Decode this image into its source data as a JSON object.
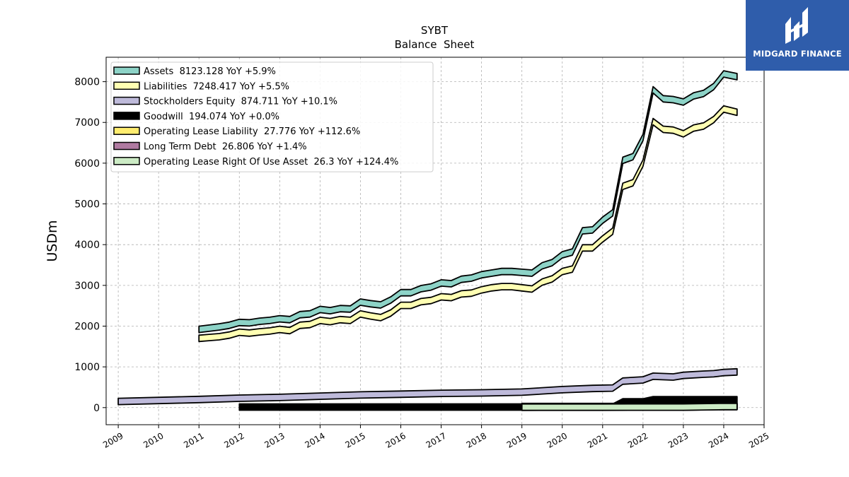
{
  "brand": {
    "name": "MIDGARD FINANCE",
    "color": "#2f5dab"
  },
  "chart_data": {
    "type": "area",
    "title": "SYBT",
    "subtitle": "Balance  Sheet",
    "ylabel": "USDm",
    "xlabel": "",
    "xlim": [
      2008.7,
      2025
    ],
    "ylim": [
      -420,
      8600
    ],
    "yticks": [
      0,
      1000,
      2000,
      3000,
      4000,
      5000,
      6000,
      7000,
      8000
    ],
    "xticks": [
      2009,
      2010,
      2011,
      2012,
      2013,
      2014,
      2015,
      2016,
      2017,
      2018,
      2019,
      2020,
      2021,
      2022,
      2023,
      2024,
      2025
    ],
    "grid": true,
    "legend_position": "top-left",
    "series": [
      {
        "name": "Assets",
        "legend": "Assets  8123.128 YoY +5.9%",
        "color": "#8dd3c7",
        "x": [
          2011.0,
          2011.25,
          2011.5,
          2011.75,
          2012.0,
          2012.25,
          2012.5,
          2012.75,
          2013.0,
          2013.25,
          2013.5,
          2013.75,
          2014.0,
          2014.25,
          2014.5,
          2014.75,
          2015.0,
          2015.25,
          2015.5,
          2015.75,
          2016.0,
          2016.25,
          2016.5,
          2016.75,
          2017.0,
          2017.25,
          2017.5,
          2017.75,
          2018.0,
          2018.25,
          2018.5,
          2018.75,
          2019.0,
          2019.25,
          2019.5,
          2019.75,
          2020.0,
          2020.25,
          2020.5,
          2020.75,
          2021.0,
          2021.25,
          2021.5,
          2021.75,
          2022.0,
          2022.25,
          2022.5,
          2022.75,
          2023.0,
          2023.25,
          2023.5,
          2023.75,
          2024.0,
          2024.33
        ],
        "y": [
          1920,
          1950,
          1980,
          2020,
          2090,
          2080,
          2120,
          2140,
          2180,
          2160,
          2280,
          2300,
          2410,
          2380,
          2430,
          2420,
          2590,
          2550,
          2520,
          2640,
          2820,
          2820,
          2920,
          2960,
          3060,
          3040,
          3150,
          3180,
          3260,
          3300,
          3340,
          3340,
          3320,
          3300,
          3480,
          3560,
          3750,
          3820,
          4340,
          4360,
          4600,
          4780,
          6070,
          6160,
          6630,
          7800,
          7580,
          7560,
          7500,
          7650,
          7710,
          7880,
          8190,
          8123
        ]
      },
      {
        "name": "Liabilities",
        "legend": "Liabilities  7248.417 YoY +5.5%",
        "color": "#ffffb3",
        "x": [
          2011.0,
          2011.25,
          2011.5,
          2011.75,
          2012.0,
          2012.25,
          2012.5,
          2012.75,
          2013.0,
          2013.25,
          2013.5,
          2013.75,
          2014.0,
          2014.25,
          2014.5,
          2014.75,
          2015.0,
          2015.25,
          2015.5,
          2015.75,
          2016.0,
          2016.25,
          2016.5,
          2016.75,
          2017.0,
          2017.25,
          2017.5,
          2017.75,
          2018.0,
          2018.25,
          2018.5,
          2018.75,
          2019.0,
          2019.25,
          2019.5,
          2019.75,
          2020.0,
          2020.25,
          2020.5,
          2020.75,
          2021.0,
          2021.25,
          2021.5,
          2021.75,
          2022.0,
          2022.25,
          2022.5,
          2022.75,
          2023.0,
          2023.25,
          2023.5,
          2023.75,
          2024.0,
          2024.33
        ],
        "y": [
          1700,
          1720,
          1740,
          1780,
          1850,
          1830,
          1860,
          1880,
          1920,
          1890,
          2020,
          2040,
          2140,
          2110,
          2160,
          2140,
          2300,
          2250,
          2210,
          2320,
          2510,
          2510,
          2600,
          2630,
          2720,
          2700,
          2790,
          2810,
          2890,
          2940,
          2970,
          2970,
          2940,
          2910,
          3080,
          3160,
          3340,
          3400,
          3920,
          3920,
          4140,
          4330,
          5430,
          5520,
          6000,
          7020,
          6830,
          6810,
          6720,
          6860,
          6910,
          7070,
          7330,
          7248
        ]
      },
      {
        "name": "Stockholders Equity",
        "legend": "Stockholders Equity  874.711 YoY +10.1%",
        "color": "#bebada",
        "x": [
          2009.0,
          2011.0,
          2012.0,
          2013.0,
          2014.0,
          2015.0,
          2016.0,
          2017.0,
          2018.0,
          2019.0,
          2020.0,
          2020.75,
          2021.25,
          2021.5,
          2022.0,
          2022.25,
          2022.75,
          2023.0,
          2023.5,
          2023.75,
          2024.0,
          2024.33
        ],
        "y": [
          150,
          200,
          230,
          250,
          280,
          310,
          330,
          350,
          360,
          380,
          440,
          470,
          480,
          650,
          680,
          770,
          750,
          790,
          820,
          830,
          860,
          875
        ]
      },
      {
        "name": "Goodwill",
        "legend": "Goodwill  194.074 YoY +0.0%",
        "color": "#000000",
        "x": [
          2012.0,
          2021.25,
          2021.5,
          2022.0,
          2022.25,
          2024.33
        ],
        "y": [
          14,
          14,
          140,
          140,
          194,
          194
        ]
      },
      {
        "name": "Operating Lease Liability",
        "legend": "Operating Lease Liability  27.776 YoY +112.6%",
        "color": "#ffed6f",
        "x": [
          2019.0,
          2020.0,
          2021.0,
          2022.0,
          2023.0,
          2024.0,
          2024.33
        ],
        "y": [
          10,
          12,
          12,
          13,
          13,
          27,
          28
        ]
      },
      {
        "name": "Long Term Debt",
        "legend": "Long Term Debt  26.806 YoY +1.4%",
        "color": "#b07aa1",
        "x": [
          2019.0,
          2020.0,
          2021.0,
          2022.0,
          2023.0,
          2024.0,
          2024.33
        ],
        "y": [
          25,
          26,
          26,
          26,
          26,
          27,
          27
        ]
      },
      {
        "name": "Operating Lease Right Of Use Asset",
        "legend": "Operating Lease Right Of Use Asset  26.3 YoY +124.4%",
        "color": "#ccebc5",
        "x": [
          2019.0,
          2020.0,
          2021.0,
          2022.0,
          2023.0,
          2024.0,
          2024.33
        ],
        "y": [
          10,
          11,
          11,
          12,
          12,
          25,
          26
        ]
      }
    ]
  }
}
